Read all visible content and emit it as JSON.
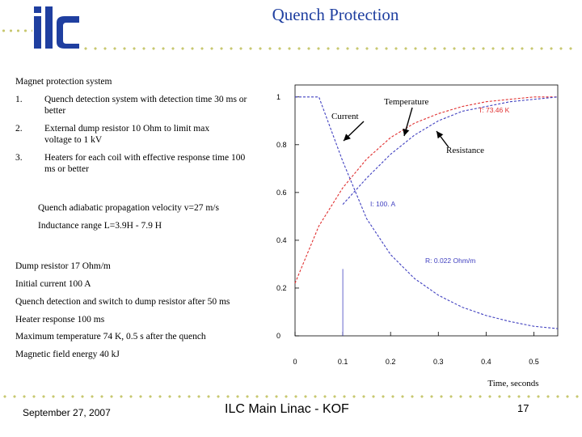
{
  "slide": {
    "title": "Quench Protection",
    "footer": {
      "date": "September 27, 2007",
      "center": "ILC Main Linac - KOF",
      "page": "17"
    }
  },
  "colors": {
    "title": "#1f3fa0",
    "logo": "#1f3fa0",
    "dots": "#c8c870",
    "red_curve": "#e03030",
    "blue_curve": "#4040c0"
  },
  "left_text": {
    "heading": "Magnet protection system",
    "items": [
      {
        "num": "1.",
        "text": "Quench detection system with detection time 30 ms or better"
      },
      {
        "num": "2.",
        "text": "External dump resistor 10 Ohm to limit max voltage to 1 kV"
      },
      {
        "num": "3.",
        "text": "Heaters for each coil with effective response time 100 ms or better"
      }
    ],
    "velocity": "Quench adiabatic propagation velocity  v=27 m/s",
    "inductance": "Inductance range  L=3.9H - 7.9 H",
    "params": [
      "Dump resistor 17 Ohm/m",
      "Initial current 100 A",
      "Quench detection and switch to dump resistor  after 50 ms",
      "Heater response 100 ms",
      "Maximum temperature 74 K, 0.5 s after the quench",
      "Magnetic field energy  40 kJ"
    ]
  },
  "chart_data": {
    "type": "line",
    "xlabel": "Time, seconds",
    "xlim": [
      0,
      0.55
    ],
    "ylim": [
      0,
      1.05
    ],
    "x_ticks": [
      "0",
      "0.1",
      "0.2",
      "0.3",
      "0.4",
      "0.5"
    ],
    "y_ticks": [
      "0",
      "0.2",
      "0.4",
      "0.6",
      "0.8",
      "1"
    ],
    "x_tick_values": [
      0,
      0.1,
      0.2,
      0.3,
      0.4,
      0.5
    ],
    "y_tick_values": [
      0,
      0.2,
      0.4,
      0.6,
      0.8,
      1
    ],
    "series": [
      {
        "name": "Temperature",
        "color": "#e03030",
        "style": "dashed",
        "x": [
          0,
          0.05,
          0.1,
          0.15,
          0.2,
          0.25,
          0.3,
          0.35,
          0.4,
          0.45,
          0.5,
          0.55
        ],
        "y": [
          0.22,
          0.46,
          0.62,
          0.74,
          0.83,
          0.89,
          0.93,
          0.96,
          0.98,
          0.99,
          1.0,
          1.0
        ]
      },
      {
        "name": "Current",
        "color": "#4040c0",
        "style": "dashed",
        "x": [
          0,
          0.05,
          0.1,
          0.15,
          0.2,
          0.25,
          0.3,
          0.35,
          0.4,
          0.45,
          0.5,
          0.55
        ],
        "y": [
          1.0,
          1.0,
          0.73,
          0.49,
          0.34,
          0.24,
          0.17,
          0.12,
          0.085,
          0.06,
          0.04,
          0.03
        ]
      },
      {
        "name": "Resistance",
        "color": "#4040c0",
        "style": "dashed",
        "x": [
          0.1,
          0.15,
          0.2,
          0.25,
          0.3,
          0.35,
          0.4,
          0.45,
          0.5,
          0.55
        ],
        "y": [
          0.55,
          0.66,
          0.76,
          0.84,
          0.9,
          0.94,
          0.96,
          0.98,
          0.99,
          1.0
        ]
      }
    ],
    "callouts": [
      {
        "label": "Temperature",
        "target": "Temperature"
      },
      {
        "label": "Current",
        "target": "Current"
      },
      {
        "label": "Resistance",
        "target": "Resistance"
      }
    ],
    "readouts": [
      {
        "text": "T: 73.46  K",
        "color": "#e03030"
      },
      {
        "text": "I:  100.  A",
        "color": "#4040c0"
      },
      {
        "text": "R: 0.022  Ohm/m",
        "color": "#4040c0"
      }
    ],
    "vline_x": 0.1
  }
}
